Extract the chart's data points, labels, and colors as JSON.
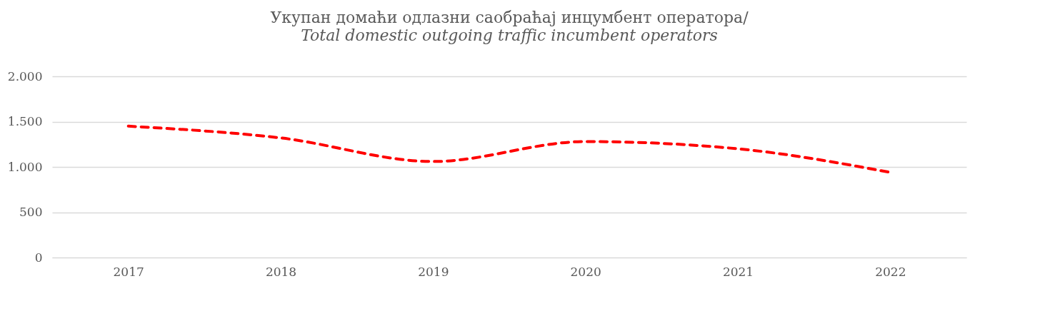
{
  "chart_data": {
    "type": "line",
    "title": "Укупан домаћи одлазни саобраћај инцумбент оператора/",
    "subtitle": "Total domestic outgoing traffic incumbent operators",
    "categories": [
      "2017",
      "2018",
      "2019",
      "2020",
      "2021",
      "2022"
    ],
    "series": [
      {
        "color": "#ff0000",
        "values": [
          1450,
          1320,
          1060,
          1280,
          1200,
          940
        ]
      }
    ],
    "ylim": [
      0,
      2000
    ],
    "yticks": [
      {
        "value": 0,
        "label": "0"
      },
      {
        "value": 500,
        "label": "500"
      },
      {
        "value": 1000,
        "label": "1.000"
      },
      {
        "value": 1500,
        "label": "1.500"
      },
      {
        "value": 2000,
        "label": "2.000"
      }
    ],
    "grid": "y",
    "line_style": "dashed"
  }
}
